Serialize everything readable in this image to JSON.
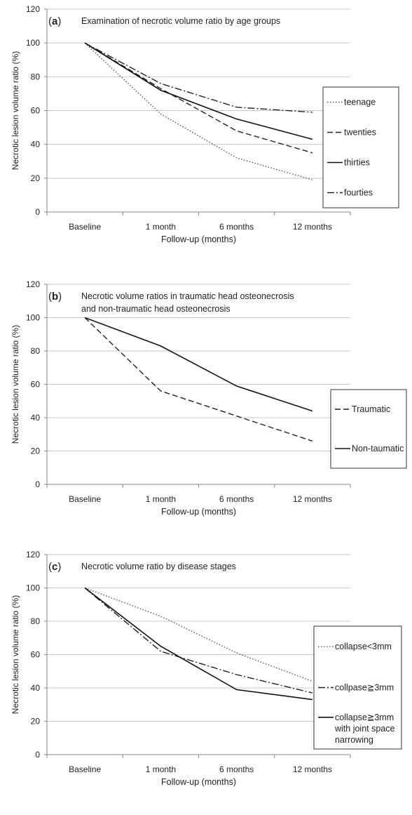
{
  "chart_data": [
    {
      "type": "line",
      "panel_label": "a",
      "title": "Examination of necrotic volume ratio by age groups",
      "xlabel": "Follow-up  (months)",
      "ylabel": "Necrotic lesion volume ratio (%)",
      "categories": [
        "Baseline",
        "1 month",
        "6 months",
        "12 months"
      ],
      "ylim": [
        0,
        120
      ],
      "yticks": [
        "0",
        "20",
        "40",
        "60",
        "80",
        "100",
        "120"
      ],
      "grid": true,
      "legend_position": "right",
      "series": [
        {
          "name": "teenage",
          "values": [
            100,
            58,
            32,
            19
          ],
          "dash": "dotted",
          "color": "#555555"
        },
        {
          "name": "twenties",
          "values": [
            100,
            73,
            48,
            35
          ],
          "dash": "dashed",
          "color": "#222222"
        },
        {
          "name": "thirties",
          "values": [
            100,
            72,
            55,
            43
          ],
          "dash": "solid",
          "color": "#111111"
        },
        {
          "name": "fourties",
          "values": [
            100,
            76,
            62,
            59
          ],
          "dash": "dashdot",
          "color": "#222222"
        }
      ]
    },
    {
      "type": "line",
      "panel_label": "b",
      "title": "Necrotic volume ratios in traumatic head osteonecrosis and non-traumatic head osteonecrosis",
      "title_lines": [
        "Necrotic volume ratios in traumatic head osteonecrosis",
        "and non-traumatic head osteonecrosis"
      ],
      "xlabel": "Follow-up  (months)",
      "ylabel": "Necrotic lesion volume ratio (%)",
      "categories": [
        "Baseline",
        "1 month",
        "6 months",
        "12 months"
      ],
      "ylim": [
        0,
        120
      ],
      "yticks": [
        "0",
        "20",
        "40",
        "60",
        "80",
        "100",
        "120"
      ],
      "grid": true,
      "legend_position": "right",
      "series": [
        {
          "name": "Traumatic",
          "values": [
            100,
            56,
            41,
            26
          ],
          "dash": "dashed",
          "color": "#222222"
        },
        {
          "name": "Non-taumatic",
          "values": [
            100,
            83,
            59,
            44
          ],
          "dash": "solid",
          "color": "#111111"
        }
      ]
    },
    {
      "type": "line",
      "panel_label": "c",
      "title": "Necrotic volume ratio by disease stages",
      "xlabel": "Follow-up  (months)",
      "ylabel": "Necrotic lesion volume ratio (%)",
      "categories": [
        "Baseline",
        "1 month",
        "6 months",
        "12 months"
      ],
      "ylim": [
        0,
        120
      ],
      "yticks": [
        "0",
        "20",
        "40",
        "60",
        "80",
        "100",
        "120"
      ],
      "grid": true,
      "legend_position": "right",
      "series": [
        {
          "name": "collapse<3mm",
          "name_lines": [
            "collapse<3mm"
          ],
          "values": [
            100,
            83,
            61,
            44
          ],
          "dash": "dotted",
          "color": "#555555"
        },
        {
          "name": "collpase≧3mm",
          "name_lines": [
            "collpase≧3mm"
          ],
          "values": [
            100,
            62,
            48,
            37
          ],
          "dash": "dashdot",
          "color": "#222222"
        },
        {
          "name": "collapse≧3mm with joint space narrowing",
          "name_lines": [
            "collapse≧3mm",
            "with joint space",
            "narrowing"
          ],
          "values": [
            100,
            65,
            39,
            33
          ],
          "dash": "solid",
          "color": "#111111"
        }
      ]
    }
  ]
}
